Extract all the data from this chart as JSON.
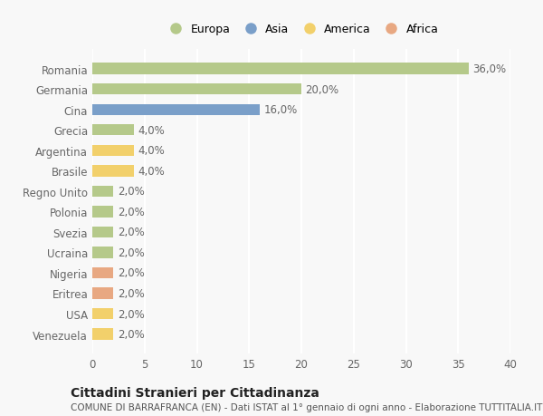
{
  "countries": [
    "Romania",
    "Germania",
    "Cina",
    "Grecia",
    "Argentina",
    "Brasile",
    "Regno Unito",
    "Polonia",
    "Svezia",
    "Ucraina",
    "Nigeria",
    "Eritrea",
    "USA",
    "Venezuela"
  ],
  "values": [
    36.0,
    20.0,
    16.0,
    4.0,
    4.0,
    4.0,
    2.0,
    2.0,
    2.0,
    2.0,
    2.0,
    2.0,
    2.0,
    2.0
  ],
  "continents": [
    "Europa",
    "Europa",
    "Asia",
    "Europa",
    "America",
    "America",
    "Europa",
    "Europa",
    "Europa",
    "Europa",
    "Africa",
    "Africa",
    "America",
    "America"
  ],
  "colors": {
    "Europa": "#b5c98a",
    "Asia": "#7a9fc9",
    "America": "#f2d06b",
    "Africa": "#e8a882"
  },
  "legend_order": [
    "Europa",
    "Asia",
    "America",
    "Africa"
  ],
  "xlim": [
    0,
    40
  ],
  "xticks": [
    0,
    5,
    10,
    15,
    20,
    25,
    30,
    35,
    40
  ],
  "title": "Cittadini Stranieri per Cittadinanza",
  "subtitle": "COMUNE DI BARRAFRANCA (EN) - Dati ISTAT al 1° gennaio di ogni anno - Elaborazione TUTTITALIA.IT",
  "background_color": "#f8f8f8",
  "bar_height": 0.55,
  "grid_color": "#ffffff",
  "label_fontsize": 8.5,
  "tick_fontsize": 8.5,
  "legend_fontsize": 9.0,
  "title_fontsize": 10,
  "subtitle_fontsize": 7.5
}
